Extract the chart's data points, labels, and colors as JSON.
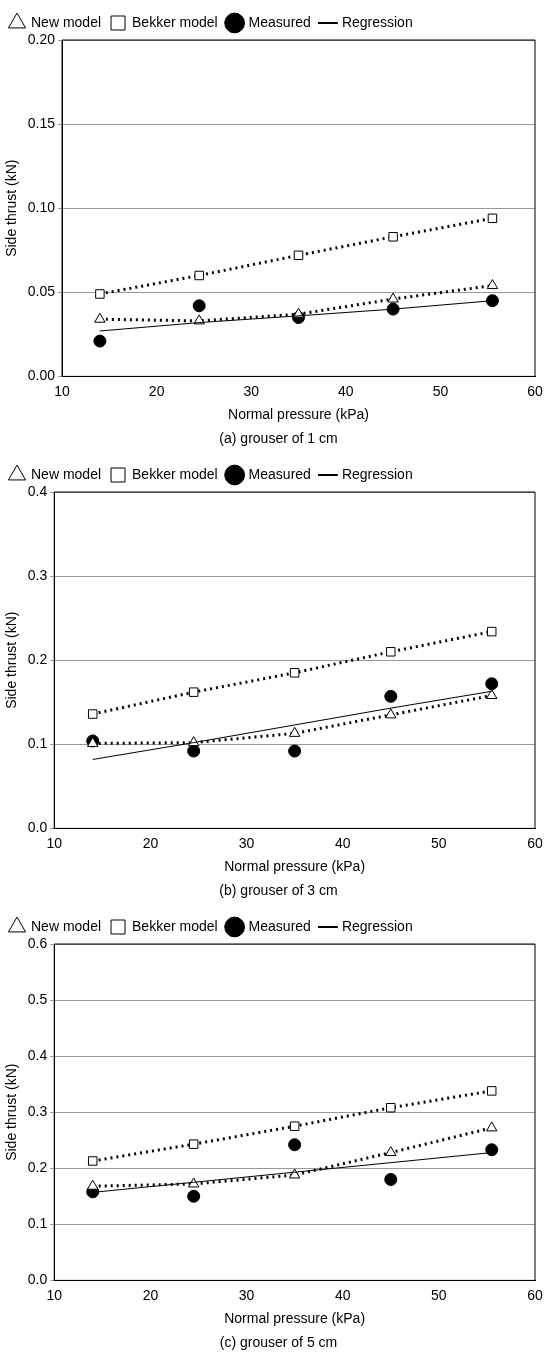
{
  "chart_data": [
    {
      "type": "line",
      "xlabel": "Normal pressure (kPa)",
      "ylabel": "Side thrust (kN)",
      "annotations": [
        "(a) grouser of 1 cm"
      ],
      "xlim": [
        10,
        60
      ],
      "xticks": [
        10,
        20,
        30,
        40,
        50,
        60
      ],
      "ylim": [
        0,
        0.2
      ],
      "yticks": [
        {
          "value": 0,
          "label": "0.00"
        },
        {
          "value": 0.05,
          "label": "0.05"
        },
        {
          "value": 0.1,
          "label": "0.10"
        },
        {
          "value": 0.15,
          "label": "0.15"
        },
        {
          "value": 0.2,
          "label": "0.20"
        }
      ],
      "grid": "y",
      "legend": "top left",
      "x": [
        14,
        24.5,
        35,
        45,
        55.5
      ],
      "series": [
        {
          "name": "New model",
          "type": "line",
          "color": "#000000",
          "marker": "triangle",
          "line_style": "dotted",
          "values": [
            0.034,
            0.033,
            0.037,
            0.046,
            0.054
          ]
        },
        {
          "name": "Bekker model",
          "type": "line",
          "color": "#000000",
          "marker": "square",
          "line_style": "dotted",
          "values": [
            0.049,
            0.06,
            0.072,
            0.083,
            0.094
          ]
        },
        {
          "name": "Measured",
          "type": "scatter",
          "color": "#000000",
          "marker": "circle",
          "values": [
            0.021,
            0.042,
            0.035,
            0.04,
            0.045
          ]
        },
        {
          "name": "Regression",
          "type": "line",
          "color": "#000000",
          "marker": "none",
          "line_style": "solid",
          "values": [
            0.027,
            0.032,
            0.036,
            0.04,
            0.045
          ]
        }
      ]
    },
    {
      "type": "line",
      "xlabel": "Normal pressure (kPa)",
      "ylabel": "Side thrust (kN)",
      "annotations": [
        "(b) grouser of 3 cm"
      ],
      "xlim": [
        10,
        60
      ],
      "xticks": [
        10,
        20,
        30,
        40,
        50,
        60
      ],
      "ylim": [
        0,
        0.4
      ],
      "yticks": [
        {
          "value": 0,
          "label": "0.0"
        },
        {
          "value": 0.1,
          "label": "0.1"
        },
        {
          "value": 0.2,
          "label": "0.2"
        },
        {
          "value": 0.3,
          "label": "0.3"
        },
        {
          "value": 0.4,
          "label": "0.4"
        }
      ],
      "grid": "y",
      "legend": "top left",
      "x": [
        14,
        24.5,
        35,
        45,
        55.5
      ],
      "series": [
        {
          "name": "New model",
          "type": "line",
          "color": "#000000",
          "marker": "triangle",
          "line_style": "dotted",
          "values": [
            0.101,
            0.102,
            0.113,
            0.135,
            0.158
          ]
        },
        {
          "name": "Bekker model",
          "type": "line",
          "color": "#000000",
          "marker": "square",
          "line_style": "dotted",
          "values": [
            0.136,
            0.162,
            0.185,
            0.21,
            0.234
          ]
        },
        {
          "name": "Measured",
          "type": "scatter",
          "color": "#000000",
          "marker": "circle",
          "values": [
            0.104,
            0.092,
            0.092,
            0.157,
            0.172
          ]
        },
        {
          "name": "Regression",
          "type": "line",
          "color": "#000000",
          "marker": "none",
          "line_style": "solid",
          "values": [
            0.082,
            0.102,
            0.123,
            0.143,
            0.163
          ]
        }
      ]
    },
    {
      "type": "line",
      "xlabel": "Normal pressure (kPa)",
      "ylabel": "Side thrust (kN)",
      "annotations": [
        "(c) grouser of 5 cm"
      ],
      "xlim": [
        10,
        60
      ],
      "xticks": [
        10,
        20,
        30,
        40,
        50,
        60
      ],
      "ylim": [
        0,
        0.6
      ],
      "yticks": [
        {
          "value": 0,
          "label": "0.0"
        },
        {
          "value": 0.1,
          "label": "0.1"
        },
        {
          "value": 0.2,
          "label": "0.2"
        },
        {
          "value": 0.3,
          "label": "0.3"
        },
        {
          "value": 0.4,
          "label": "0.4"
        },
        {
          "value": 0.5,
          "label": "0.5"
        },
        {
          "value": 0.6,
          "label": "0.6"
        }
      ],
      "grid": "y",
      "legend": "top left",
      "x": [
        14,
        24.5,
        35,
        45,
        55.5
      ],
      "series": [
        {
          "name": "New model",
          "type": "line",
          "color": "#000000",
          "marker": "triangle",
          "line_style": "dotted",
          "values": [
            0.168,
            0.172,
            0.188,
            0.228,
            0.272
          ]
        },
        {
          "name": "Bekker model",
          "type": "line",
          "color": "#000000",
          "marker": "square",
          "line_style": "dotted",
          "values": [
            0.213,
            0.243,
            0.275,
            0.308,
            0.338
          ]
        },
        {
          "name": "Measured",
          "type": "scatter",
          "color": "#000000",
          "marker": "circle",
          "values": [
            0.158,
            0.15,
            0.242,
            0.18,
            0.233
          ]
        },
        {
          "name": "Regression",
          "type": "line",
          "color": "#000000",
          "marker": "none",
          "line_style": "solid",
          "values": [
            0.157,
            0.175,
            0.193,
            0.21,
            0.228
          ]
        }
      ]
    }
  ]
}
